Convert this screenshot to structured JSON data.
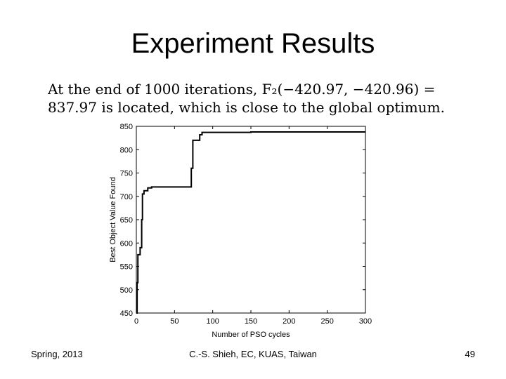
{
  "slide": {
    "title": "Experiment Results",
    "body_line1": "At the end of 1000 iterations, F₂(−420.97, −420.96) = ",
    "body_line2": "837.97 is located, which is close to the global optimum."
  },
  "footer": {
    "left": "Spring, 2013",
    "center": "C.-S. Shieh, EC, KUAS, Taiwan",
    "right": "49"
  },
  "chart_data": {
    "type": "line",
    "xlabel": "Number of PSO cycles",
    "ylabel": "Best Object Value Found",
    "xlim": [
      0,
      300
    ],
    "ylim": [
      450,
      850
    ],
    "xticks": [
      0,
      50,
      100,
      150,
      200,
      250,
      300
    ],
    "yticks": [
      450,
      500,
      550,
      600,
      650,
      700,
      750,
      800,
      850
    ],
    "grid": false,
    "series": [
      {
        "values_x": [
          0,
          1,
          1,
          2,
          2,
          5,
          5,
          7,
          7,
          8,
          8,
          10,
          10,
          15,
          15,
          20,
          20,
          72,
          72,
          74,
          74,
          83,
          83,
          86,
          86,
          150,
          150,
          300
        ],
        "values_y": [
          450,
          450,
          515,
          515,
          575,
          575,
          590,
          590,
          650,
          650,
          705,
          705,
          712,
          712,
          718,
          718,
          720,
          720,
          760,
          760,
          820,
          820,
          832,
          832,
          837,
          837,
          838,
          838
        ]
      }
    ]
  }
}
